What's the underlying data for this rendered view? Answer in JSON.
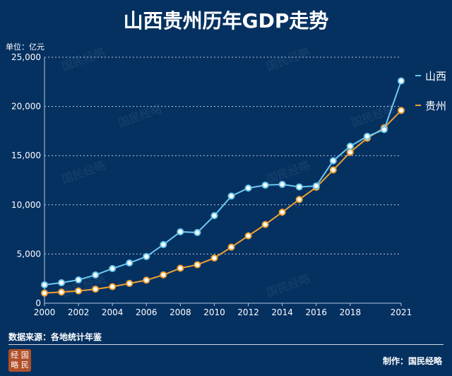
{
  "chart_data": {
    "type": "line",
    "title": "山西贵州历年GDP走势",
    "unit_label": "单位：亿元",
    "x": [
      2000,
      2001,
      2002,
      2003,
      2004,
      2005,
      2006,
      2007,
      2008,
      2009,
      2010,
      2011,
      2012,
      2013,
      2014,
      2015,
      2016,
      2017,
      2018,
      2019,
      2020,
      2021
    ],
    "x_ticks": [
      "2000",
      "2002",
      "2004",
      "2006",
      "2008",
      "2010",
      "2012",
      "2014",
      "2016",
      "2018",
      "2021"
    ],
    "y_ticks": [
      "0",
      "5,000",
      "10,000",
      "15,000",
      "20,000",
      "25,000"
    ],
    "ylim": [
      0,
      25000
    ],
    "grid": "horizontal dotted",
    "legend_position": "right",
    "series": [
      {
        "name": "山西",
        "color": "#6cc8f0",
        "values": [
          1870,
          2080,
          2370,
          2870,
          3520,
          4090,
          4740,
          5960,
          7260,
          7180,
          8900,
          10890,
          11700,
          12000,
          12080,
          11820,
          11920,
          14480,
          15960,
          16960,
          17650,
          22590
        ]
      },
      {
        "name": "贵州",
        "color": "#f0a030",
        "values": [
          1030,
          1130,
          1250,
          1430,
          1680,
          2010,
          2340,
          2880,
          3560,
          3910,
          4590,
          5700,
          6850,
          8000,
          9250,
          10540,
          11780,
          13540,
          15350,
          16770,
          17830,
          19590
        ]
      }
    ]
  },
  "footer": {
    "source": "数据来源：各地统计年鉴",
    "credit": "制作：国民经略",
    "logo_text": "经国略民",
    "watermark": "国民经略"
  }
}
